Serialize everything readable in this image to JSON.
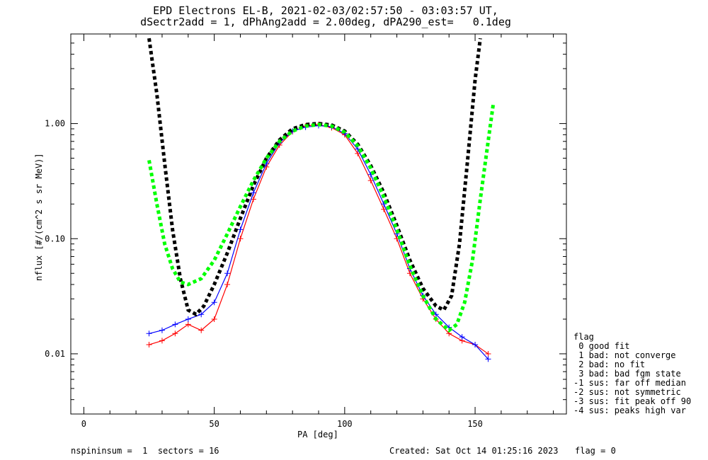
{
  "titles": {
    "line1": "EPD Electrons EL-B, 2021-02-03/02:57:50 - 03:03:57 UT,",
    "line2": "dSectr2add = 1, dPhAng2add = 2.00deg, dPA290_est=   0.1deg"
  },
  "footer": {
    "left": "nspininsum =  1  sectors = 16",
    "created": "Created: Sat Oct 14 01:25:16 2023",
    "flag": "flag = 0"
  },
  "legend": {
    "title": "flag",
    "items": [
      " 0 good fit",
      " 1 bad: not converge",
      " 2 bad: no fit",
      " 3 bad: bad fgm state",
      "-1 sus: far off median",
      "-2 sus: not symmetric",
      "-3 sus: fit peak off 90",
      "-4 sus: peaks high var"
    ]
  },
  "colors": {
    "red": "#ff0000",
    "blue": "#0000ff",
    "black": "#000000",
    "green": "#00ff00"
  },
  "chart_data": {
    "type": "line",
    "xlabel": "PA [deg]",
    "ylabel": "nflux [#/(cm^2 s sr MeV)]",
    "xlim": [
      -5,
      185
    ],
    "ylim": [
      0.003,
      6.0
    ],
    "yscale": "log",
    "xticks": [
      0,
      50,
      100,
      150
    ],
    "yticks": [
      0.01,
      0.1,
      1.0
    ],
    "ytick_labels": [
      "0.01",
      "0.10",
      "1.00"
    ],
    "grid": false,
    "series": [
      {
        "color": "red",
        "x": [
          25,
          30,
          35,
          40,
          45,
          50,
          55,
          60,
          65,
          70,
          75,
          80,
          85,
          90,
          95,
          100,
          105,
          110,
          115,
          120,
          125,
          130,
          135,
          140,
          145,
          150,
          155
        ],
        "y": [
          0.012,
          0.013,
          0.015,
          0.018,
          0.016,
          0.02,
          0.04,
          0.1,
          0.22,
          0.42,
          0.65,
          0.85,
          0.95,
          0.98,
          0.92,
          0.8,
          0.55,
          0.32,
          0.18,
          0.1,
          0.05,
          0.03,
          0.02,
          0.015,
          0.013,
          0.012,
          0.01
        ]
      },
      {
        "color": "blue",
        "x": [
          25,
          30,
          35,
          40,
          45,
          50,
          55,
          60,
          65,
          70,
          75,
          80,
          85,
          90,
          95,
          100,
          105,
          110,
          115,
          120,
          125,
          130,
          135,
          140,
          145,
          150,
          155
        ],
        "y": [
          0.015,
          0.016,
          0.018,
          0.02,
          0.022,
          0.028,
          0.05,
          0.12,
          0.25,
          0.45,
          0.68,
          0.86,
          0.93,
          0.96,
          0.94,
          0.82,
          0.6,
          0.36,
          0.2,
          0.11,
          0.055,
          0.032,
          0.022,
          0.017,
          0.014,
          0.012,
          0.009
        ]
      },
      {
        "color": "black",
        "x": [
          25,
          28,
          31,
          34,
          37,
          40,
          43,
          46,
          50,
          55,
          60,
          65,
          70,
          75,
          80,
          85,
          90,
          95,
          100,
          105,
          110,
          115,
          120,
          125,
          130,
          135,
          138,
          141,
          144,
          147,
          150,
          152
        ],
        "y": [
          5.5,
          1.8,
          0.45,
          0.12,
          0.045,
          0.024,
          0.022,
          0.026,
          0.04,
          0.075,
          0.15,
          0.29,
          0.5,
          0.72,
          0.9,
          0.98,
          1.0,
          0.97,
          0.86,
          0.66,
          0.43,
          0.25,
          0.13,
          0.065,
          0.037,
          0.026,
          0.024,
          0.032,
          0.09,
          0.45,
          2.4,
          5.5
        ]
      },
      {
        "color": "green",
        "x": [
          25,
          28,
          31,
          34,
          37,
          40,
          45,
          50,
          55,
          60,
          65,
          70,
          75,
          80,
          85,
          90,
          95,
          100,
          105,
          110,
          115,
          120,
          125,
          130,
          135,
          140,
          143,
          146,
          149,
          152,
          155,
          157
        ],
        "y": [
          0.48,
          0.2,
          0.09,
          0.055,
          0.042,
          0.04,
          0.045,
          0.065,
          0.11,
          0.19,
          0.32,
          0.5,
          0.7,
          0.86,
          0.95,
          0.98,
          0.95,
          0.84,
          0.64,
          0.41,
          0.23,
          0.12,
          0.058,
          0.032,
          0.02,
          0.016,
          0.018,
          0.028,
          0.065,
          0.22,
          0.7,
          1.5
        ]
      }
    ]
  }
}
